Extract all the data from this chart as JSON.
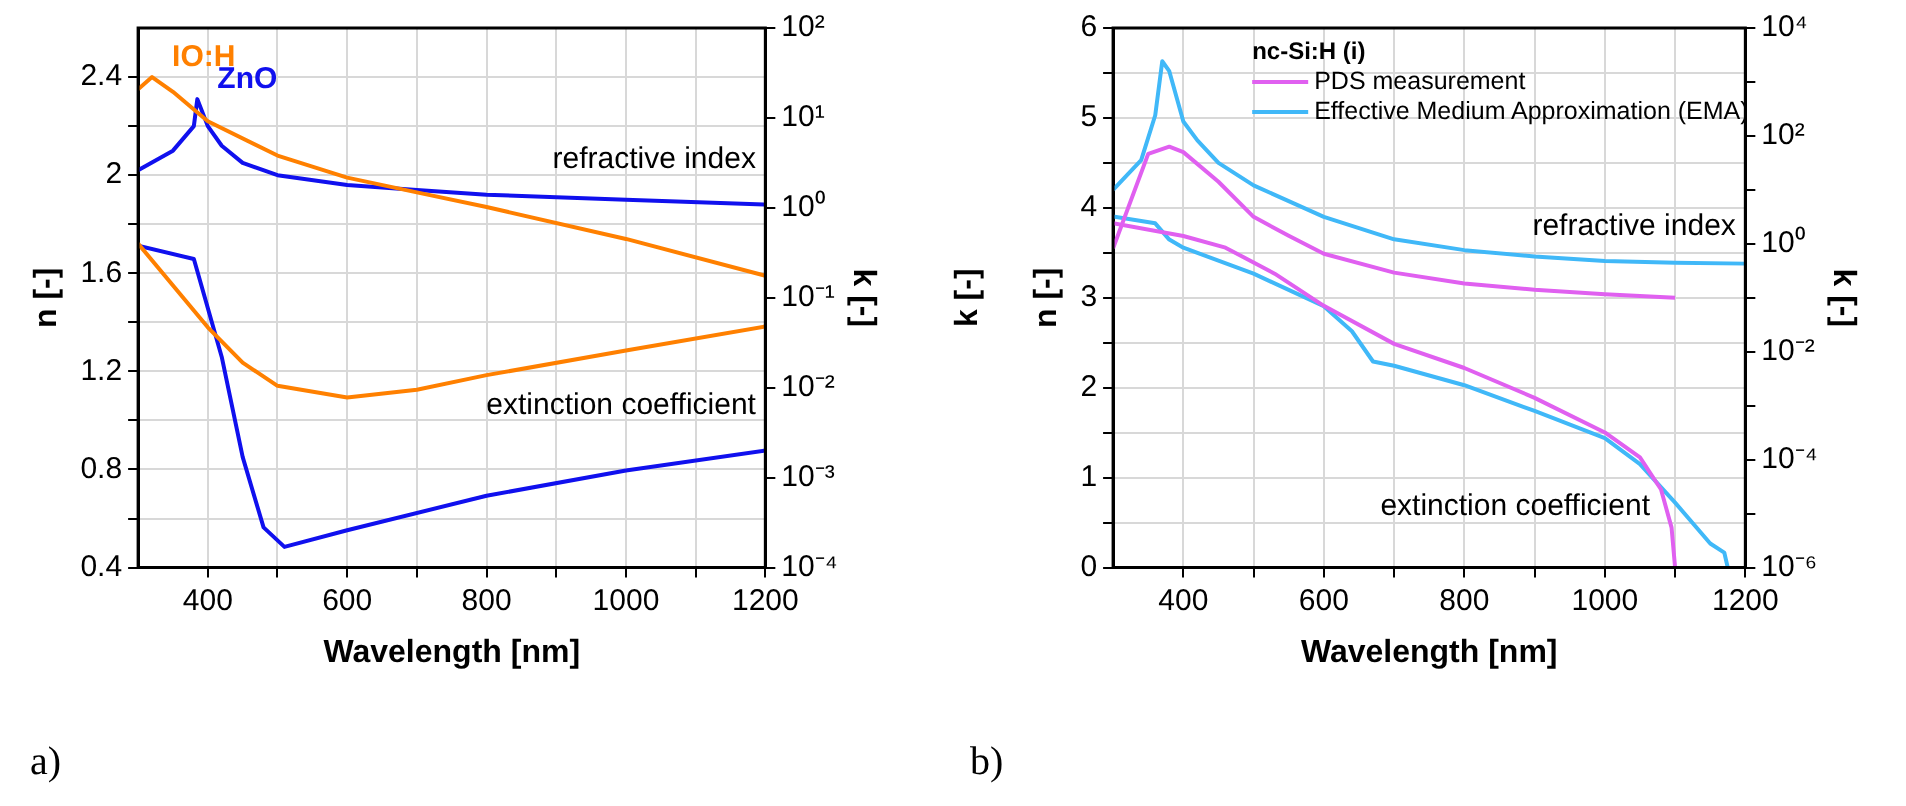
{
  "chart_data": [
    {
      "type": "line",
      "xlabel": "Wavelength [nm]",
      "ylabel": "n [-]",
      "y2label": "k [-]",
      "xlim": [
        300,
        1200
      ],
      "xticks": [
        400,
        {
          "value": 500,
          "label": null
        },
        600,
        {
          "value": 700,
          "label": null
        },
        800,
        {
          "value": 900,
          "label": null
        },
        1000,
        {
          "value": 1100,
          "label": null
        },
        1200
      ],
      "ylim": [
        0.4,
        2.6
      ],
      "yticks": [
        0.4,
        {
          "value": 0.6,
          "label": null
        },
        0.8,
        {
          "value": 1.0,
          "label": null
        },
        1.2,
        {
          "value": 1.4,
          "label": null
        },
        1.6,
        {
          "value": 1.8,
          "label": null
        },
        2.0,
        {
          "value": 2.2,
          "label": null
        },
        2.4
      ],
      "y2lim": [
        0.0001,
        100
      ],
      "y2ticks": [
        {
          "value": 0.0001,
          "label": "10⁻⁴"
        },
        {
          "value": 0.001,
          "label": "10⁻³"
        },
        {
          "value": 0.01,
          "label": "10⁻²"
        },
        {
          "value": 0.1,
          "label": "10⁻¹"
        },
        {
          "value": 1,
          "label": "10⁰"
        },
        {
          "value": 10,
          "label": "10¹"
        },
        {
          "value": 100,
          "label": "10²"
        }
      ],
      "log": "y2",
      "grid": true,
      "legend": false,
      "series": [
        {
          "name": "IO:H",
          "color": "#ff8000",
          "x": [
            300,
            320,
            350,
            400,
            500,
            600,
            700,
            800,
            1000,
            1200
          ],
          "values": [
            2.35,
            2.4,
            2.34,
            2.22,
            2.08,
            1.99,
            1.93,
            1.87,
            1.74,
            1.59
          ]
        },
        {
          "name": "ZnO",
          "color": "#1010ee",
          "x": [
            300,
            350,
            380,
            385,
            400,
            420,
            450,
            500,
            600,
            700,
            800,
            1000,
            1200
          ],
          "values": [
            2.02,
            2.1,
            2.2,
            2.31,
            2.2,
            2.12,
            2.05,
            2.0,
            1.96,
            1.94,
            1.92,
            1.9,
            1.88
          ]
        },
        {
          "color": "#ff8000",
          "axis": "y2",
          "x": [
            300,
            400,
            450,
            500,
            600,
            700,
            800,
            1000,
            1200
          ],
          "values": [
            0.4,
            0.047,
            0.019,
            0.0105,
            0.0078,
            0.0095,
            0.0138,
            0.026,
            0.048
          ]
        },
        {
          "color": "#1010ee",
          "axis": "y2",
          "x": [
            300,
            380,
            420,
            450,
            480,
            510,
            600,
            800,
            1000,
            1200
          ],
          "values": [
            0.38,
            0.27,
            0.022,
            0.0017,
            0.00028,
            0.00017,
            0.00026,
            0.00063,
            0.0012,
            0.002
          ]
        }
      ],
      "annotations": [
        "a)",
        "refractive index",
        "extinction coefficient"
      ]
    },
    {
      "type": "line",
      "xlabel": "Wavelength [nm]",
      "ylabel": "n [-]",
      "y2label": "k [-]",
      "xlim": [
        300,
        1200
      ],
      "xticks": [
        400,
        {
          "value": 500,
          "label": null
        },
        600,
        {
          "value": 700,
          "label": null
        },
        800,
        {
          "value": 900,
          "label": null
        },
        1000,
        {
          "value": 1100,
          "label": null
        },
        1200
      ],
      "ylim": [
        0,
        6
      ],
      "yticks": [
        0,
        {
          "value": 0.5,
          "label": null
        },
        1,
        {
          "value": 1.5,
          "label": null
        },
        2,
        {
          "value": 2.5,
          "label": null
        },
        3,
        {
          "value": 3.5,
          "label": null
        },
        4,
        {
          "value": 4.5,
          "label": null
        },
        5,
        {
          "value": 5.5,
          "label": null
        },
        6
      ],
      "y2lim": [
        1e-06,
        10000
      ],
      "y2ticks": [
        {
          "value": 1e-06,
          "label": "10⁻⁶"
        },
        {
          "value": 1e-05,
          "label": null
        },
        {
          "value": 0.0001,
          "label": "10⁻⁴"
        },
        {
          "value": 0.001,
          "label": null
        },
        {
          "value": 0.01,
          "label": "10⁻²"
        },
        {
          "value": 0.1,
          "label": null
        },
        {
          "value": 1,
          "label": "10⁰"
        },
        {
          "value": 10,
          "label": null
        },
        {
          "value": 100,
          "label": "10²"
        },
        {
          "value": 1000,
          "label": null
        },
        {
          "value": 10000,
          "label": "10⁴"
        }
      ],
      "log": "y2",
      "grid": true,
      "legend": "top",
      "legend_title": "nc-Si:H (i)",
      "series": [
        {
          "name": "PDS measurement",
          "color": "#e060f0",
          "x": [
            300,
            350,
            380,
            400,
            450,
            500,
            550,
            600,
            700,
            800,
            900,
            1000,
            1100
          ],
          "values": [
            3.55,
            4.6,
            4.68,
            4.62,
            4.29,
            3.9,
            3.69,
            3.49,
            3.28,
            3.16,
            3.09,
            3.04,
            3.0
          ]
        },
        {
          "name": "Effective Medium Approximation (EMA)",
          "color": "#40b8f8",
          "x": [
            300,
            340,
            360,
            370,
            380,
            400,
            420,
            450,
            500,
            600,
            700,
            800,
            900,
            1000,
            1100,
            1200
          ],
          "values": [
            4.2,
            4.53,
            5.03,
            5.63,
            5.52,
            4.96,
            4.75,
            4.5,
            4.25,
            3.9,
            3.65,
            3.53,
            3.46,
            3.41,
            3.39,
            3.38
          ]
        },
        {
          "color": "#e060f0",
          "axis": "y2",
          "x": [
            300,
            400,
            460,
            530,
            600,
            700,
            800,
            900,
            1000,
            1050,
            1080,
            1095,
            1100
          ],
          "values": [
            2.4,
            1.4,
            0.85,
            0.28,
            0.071,
            0.014,
            0.005,
            0.0014,
            0.00032,
            0.00011,
            2.8e-05,
            5.5e-06,
            1e-06
          ]
        },
        {
          "color": "#40b8f8",
          "axis": "y2",
          "x": [
            300,
            360,
            380,
            400,
            500,
            600,
            640,
            670,
            700,
            800,
            900,
            1000,
            1050,
            1100,
            1150,
            1170,
            1175
          ],
          "values": [
            3.2,
            2.4,
            1.2,
            0.85,
            0.28,
            0.07,
            0.024,
            0.0066,
            0.0055,
            0.0024,
            0.0008,
            0.00025,
            8.3e-05,
            1.6e-05,
            2.8e-06,
            1.9e-06,
            1e-06
          ]
        }
      ],
      "annotations": [
        "b)",
        "refractive index",
        "extinction coefficient",
        "k [-]"
      ]
    }
  ]
}
